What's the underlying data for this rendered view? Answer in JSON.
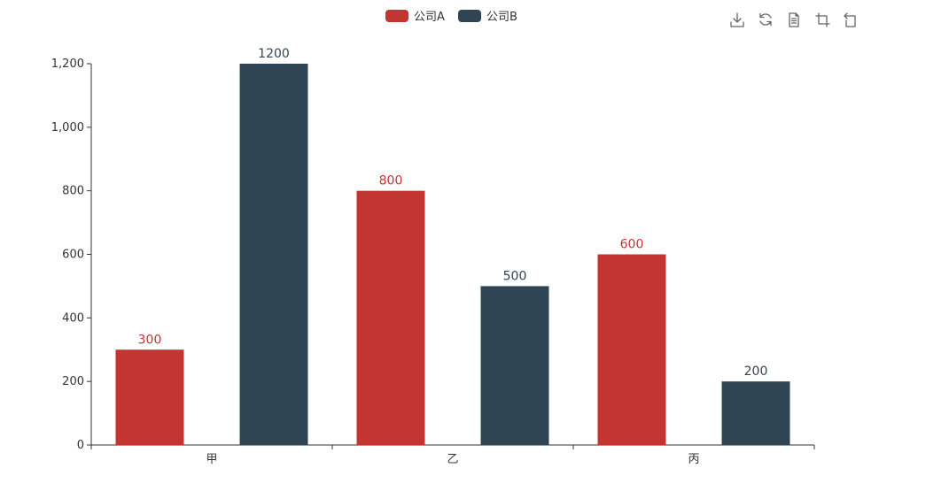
{
  "chart_data": {
    "type": "bar",
    "categories": [
      "甲",
      "乙",
      "丙"
    ],
    "series": [
      {
        "name": "公司A",
        "values": [
          300,
          800,
          600
        ],
        "color": "#c23531"
      },
      {
        "name": "公司B",
        "values": [
          1200,
          500,
          200
        ],
        "color": "#2f4554"
      }
    ],
    "title": "",
    "xlabel": "",
    "ylabel": "",
    "ylim": [
      0,
      1200
    ],
    "yticks": [
      0,
      200,
      400,
      600,
      800,
      1000,
      1200
    ],
    "ytick_labels": [
      "0",
      "200",
      "400",
      "600",
      "800",
      "1,000",
      "1,200"
    ],
    "grid": false,
    "legend_position": "top-center",
    "data_labels": true
  },
  "toolbox": {
    "icons": [
      "download-icon",
      "refresh-icon",
      "data-view-icon",
      "zoom-icon",
      "zoom-reset-icon"
    ]
  },
  "colors": {
    "axis": "#333333",
    "tick_text": "#333333",
    "legend_text": "#333333"
  }
}
